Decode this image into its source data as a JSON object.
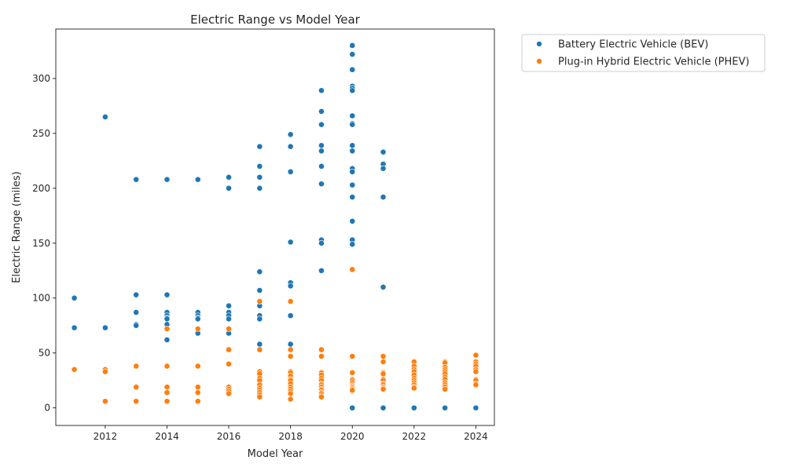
{
  "chart_data": {
    "type": "scatter",
    "title": "Electric Range vs Model Year",
    "xlabel": "Model Year",
    "ylabel": "Electric Range (miles)",
    "xlim": [
      2010.4,
      2024.6
    ],
    "ylim": [
      -16,
      345
    ],
    "xticks": [
      2012,
      2014,
      2016,
      2018,
      2020,
      2022,
      2024
    ],
    "yticks": [
      0,
      50,
      100,
      150,
      200,
      250,
      300
    ],
    "grid": false,
    "legend_position": "outside-top-right",
    "colors": {
      "bev": "#1f77b4",
      "phev": "#ff7f0e"
    },
    "series": [
      {
        "name": "Battery Electric Vehicle (BEV)",
        "color": "#1f77b4",
        "points": [
          [
            2011,
            100
          ],
          [
            2011,
            73
          ],
          [
            2012,
            265
          ],
          [
            2012,
            73
          ],
          [
            2013,
            208
          ],
          [
            2013,
            103
          ],
          [
            2013,
            87
          ],
          [
            2013,
            76
          ],
          [
            2013,
            75
          ],
          [
            2014,
            208
          ],
          [
            2014,
            103
          ],
          [
            2014,
            87
          ],
          [
            2014,
            84
          ],
          [
            2014,
            82
          ],
          [
            2014,
            81
          ],
          [
            2014,
            76
          ],
          [
            2014,
            62
          ],
          [
            2015,
            208
          ],
          [
            2015,
            87
          ],
          [
            2015,
            84
          ],
          [
            2015,
            82
          ],
          [
            2015,
            81
          ],
          [
            2015,
            68
          ],
          [
            2016,
            210
          ],
          [
            2016,
            200
          ],
          [
            2016,
            93
          ],
          [
            2016,
            87
          ],
          [
            2016,
            84
          ],
          [
            2016,
            81
          ],
          [
            2016,
            68
          ],
          [
            2017,
            238
          ],
          [
            2017,
            220
          ],
          [
            2017,
            210
          ],
          [
            2017,
            200
          ],
          [
            2017,
            124
          ],
          [
            2017,
            107
          ],
          [
            2017,
            93
          ],
          [
            2017,
            84
          ],
          [
            2017,
            81
          ],
          [
            2017,
            58
          ],
          [
            2018,
            249
          ],
          [
            2018,
            238
          ],
          [
            2018,
            215
          ],
          [
            2018,
            151
          ],
          [
            2018,
            114
          ],
          [
            2018,
            111
          ],
          [
            2018,
            84
          ],
          [
            2018,
            58
          ],
          [
            2019,
            289
          ],
          [
            2019,
            270
          ],
          [
            2019,
            258
          ],
          [
            2019,
            239
          ],
          [
            2019,
            234
          ],
          [
            2019,
            220
          ],
          [
            2019,
            204
          ],
          [
            2019,
            153
          ],
          [
            2019,
            150
          ],
          [
            2019,
            125
          ],
          [
            2020,
            330
          ],
          [
            2020,
            322
          ],
          [
            2020,
            308
          ],
          [
            2020,
            293
          ],
          [
            2020,
            291
          ],
          [
            2020,
            289
          ],
          [
            2020,
            266
          ],
          [
            2020,
            259
          ],
          [
            2020,
            258
          ],
          [
            2020,
            239
          ],
          [
            2020,
            234
          ],
          [
            2020,
            218
          ],
          [
            2020,
            215
          ],
          [
            2020,
            203
          ],
          [
            2020,
            192
          ],
          [
            2020,
            170
          ],
          [
            2020,
            153
          ],
          [
            2020,
            149
          ],
          [
            2020,
            0
          ],
          [
            2021,
            233
          ],
          [
            2021,
            222
          ],
          [
            2021,
            218
          ],
          [
            2021,
            192
          ],
          [
            2021,
            110
          ],
          [
            2021,
            0
          ],
          [
            2022,
            0
          ],
          [
            2023,
            0
          ],
          [
            2024,
            0
          ]
        ]
      },
      {
        "name": "Plug-in Hybrid Electric Vehicle (PHEV)",
        "color": "#ff7f0e",
        "points": [
          [
            2011,
            35
          ],
          [
            2012,
            35
          ],
          [
            2012,
            33
          ],
          [
            2012,
            6
          ],
          [
            2013,
            38
          ],
          [
            2013,
            19
          ],
          [
            2013,
            6
          ],
          [
            2014,
            72
          ],
          [
            2014,
            38
          ],
          [
            2014,
            19
          ],
          [
            2014,
            14
          ],
          [
            2014,
            6
          ],
          [
            2015,
            72
          ],
          [
            2015,
            38
          ],
          [
            2015,
            19
          ],
          [
            2015,
            14
          ],
          [
            2015,
            6
          ],
          [
            2016,
            72
          ],
          [
            2016,
            53
          ],
          [
            2016,
            40
          ],
          [
            2016,
            19
          ],
          [
            2016,
            17
          ],
          [
            2016,
            15
          ],
          [
            2016,
            13
          ],
          [
            2017,
            97
          ],
          [
            2017,
            53
          ],
          [
            2017,
            33
          ],
          [
            2017,
            31
          ],
          [
            2017,
            27
          ],
          [
            2017,
            25
          ],
          [
            2017,
            21
          ],
          [
            2017,
            18
          ],
          [
            2017,
            16
          ],
          [
            2017,
            14
          ],
          [
            2017,
            12
          ],
          [
            2017,
            10
          ],
          [
            2018,
            97
          ],
          [
            2018,
            53
          ],
          [
            2018,
            47
          ],
          [
            2018,
            33
          ],
          [
            2018,
            32
          ],
          [
            2018,
            29
          ],
          [
            2018,
            26
          ],
          [
            2018,
            25
          ],
          [
            2018,
            22
          ],
          [
            2018,
            19
          ],
          [
            2018,
            17
          ],
          [
            2018,
            15
          ],
          [
            2018,
            13
          ],
          [
            2018,
            8
          ],
          [
            2019,
            53
          ],
          [
            2019,
            47
          ],
          [
            2019,
            32
          ],
          [
            2019,
            30
          ],
          [
            2019,
            27
          ],
          [
            2019,
            25
          ],
          [
            2019,
            22
          ],
          [
            2019,
            21
          ],
          [
            2019,
            19
          ],
          [
            2019,
            17
          ],
          [
            2019,
            16
          ],
          [
            2019,
            14
          ],
          [
            2019,
            13
          ],
          [
            2019,
            11
          ],
          [
            2019,
            10
          ],
          [
            2020,
            126
          ],
          [
            2020,
            47
          ],
          [
            2020,
            32
          ],
          [
            2020,
            26
          ],
          [
            2020,
            25
          ],
          [
            2020,
            23
          ],
          [
            2020,
            21
          ],
          [
            2020,
            20
          ],
          [
            2020,
            19
          ],
          [
            2020,
            18
          ],
          [
            2020,
            17
          ],
          [
            2020,
            16
          ],
          [
            2021,
            47
          ],
          [
            2021,
            42
          ],
          [
            2021,
            32
          ],
          [
            2021,
            31
          ],
          [
            2021,
            26
          ],
          [
            2021,
            25
          ],
          [
            2021,
            22
          ],
          [
            2021,
            21
          ],
          [
            2021,
            19
          ],
          [
            2021,
            18
          ],
          [
            2021,
            17
          ],
          [
            2022,
            42
          ],
          [
            2022,
            38
          ],
          [
            2022,
            35
          ],
          [
            2022,
            33
          ],
          [
            2022,
            30
          ],
          [
            2022,
            27
          ],
          [
            2022,
            25
          ],
          [
            2022,
            23
          ],
          [
            2022,
            21
          ],
          [
            2022,
            19
          ],
          [
            2022,
            18
          ],
          [
            2023,
            42
          ],
          [
            2023,
            41
          ],
          [
            2023,
            37
          ],
          [
            2023,
            35
          ],
          [
            2023,
            33
          ],
          [
            2023,
            31
          ],
          [
            2023,
            28
          ],
          [
            2023,
            26
          ],
          [
            2023,
            23
          ],
          [
            2023,
            21
          ],
          [
            2023,
            19
          ],
          [
            2023,
            17
          ],
          [
            2024,
            48
          ],
          [
            2024,
            42
          ],
          [
            2024,
            40
          ],
          [
            2024,
            38
          ],
          [
            2024,
            35
          ],
          [
            2024,
            33
          ],
          [
            2024,
            26
          ],
          [
            2024,
            25
          ],
          [
            2024,
            22
          ],
          [
            2024,
            21
          ]
        ]
      }
    ]
  }
}
